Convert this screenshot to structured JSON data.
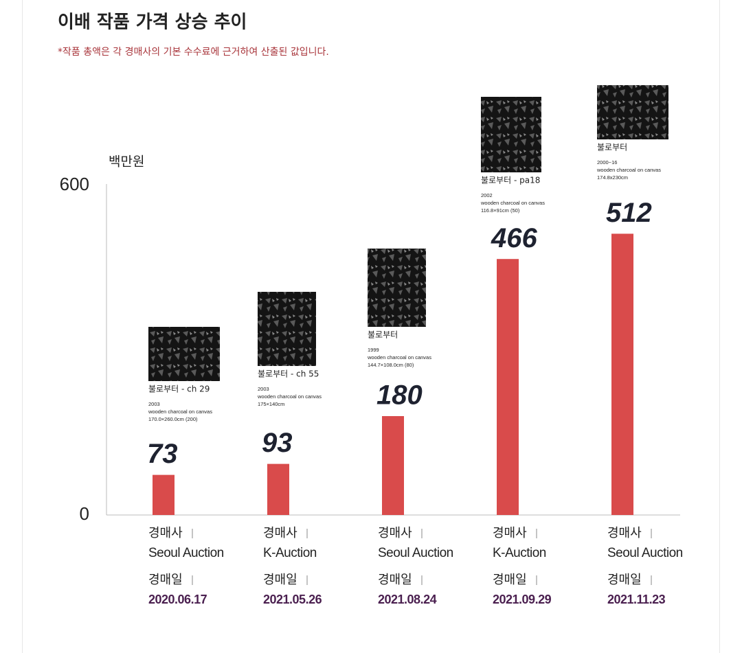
{
  "chart_data": {
    "type": "bar",
    "title": "이배 작품 가격 상승 추이",
    "subtitle": "*작품 총액은 각 경매사의 기본 수수료에 근거하여 산출된 값입니다.",
    "y_unit": "백만원",
    "auction_house_label": "경매사",
    "date_label": "경매일",
    "categories": [
      "2020.06.17",
      "2021.05.26",
      "2021.08.24",
      "2021.09.29",
      "2021.11.23"
    ],
    "auction_houses": [
      "Seoul Auction",
      "K-Auction",
      "Seoul Auction",
      "K-Auction",
      "Seoul Auction"
    ],
    "values": [
      73,
      93,
      180,
      466,
      512
    ],
    "color": "#d94b4b",
    "works": [
      {
        "title": "불로부터 - ch 29",
        "year": "2003",
        "medium": "wooden charcoal on canvas",
        "size": "170.0×260.0cm (200)"
      },
      {
        "title": "불로부터 - ch 55",
        "year": "2003",
        "medium": "wooden charcoal on canvas",
        "size": "175×140cm"
      },
      {
        "title": "불로부터",
        "year": "1999",
        "medium": "wooden charcoal on canvas",
        "size": "144.7×108.0cm (80)"
      },
      {
        "title": "불로부터 - pa18",
        "year": "2002",
        "medium": "wooden charcoal on canvas",
        "size": "116.8×91cm (50)"
      },
      {
        "title": "불로부터",
        "year": "2000~16",
        "medium": "wooden charcoal on canvas",
        "size": "174.8x230cm"
      }
    ],
    "ylim": [
      0,
      600
    ],
    "yticks": [
      0,
      600
    ],
    "grid": false
  }
}
